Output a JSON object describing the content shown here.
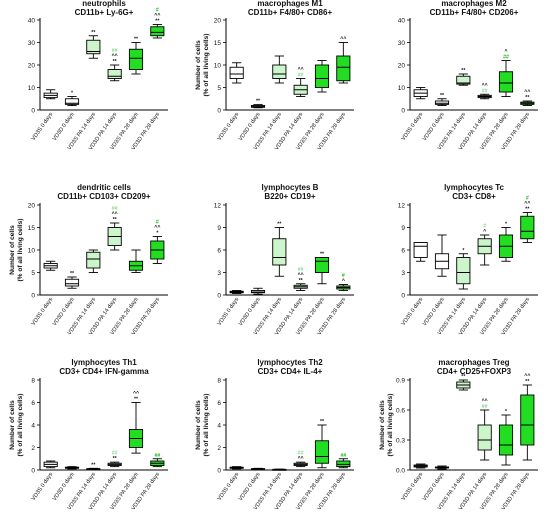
{
  "colors": {
    "sig_black": "#111111",
    "sig_lightgreen": "#8fd88f",
    "sig_green": "#22bb22",
    "box_fills": [
      "#ffffff",
      "#ffffff",
      "#ccf5cc",
      "#ccf5cc",
      "#22dd22",
      "#22dd22"
    ]
  },
  "chart_data": [
    {
      "type": "boxplot",
      "title": "neutrophils",
      "subtitle": "CD11b+ Ly-6G+",
      "ylabel": "",
      "ylim": [
        0,
        40
      ],
      "yticks": [
        0,
        10,
        20,
        30,
        40
      ],
      "categories": [
        "VD3S 0 days",
        "VD3D 0 days",
        "VD3S PA 14 days",
        "VD3D PA 14 days",
        "VD3S PA 28 days",
        "VD3D PA 28 days"
      ],
      "boxes": [
        {
          "min": 5,
          "q1": 5.5,
          "median": 6.5,
          "q3": 7.5,
          "max": 9
        },
        {
          "min": 2,
          "q1": 2.5,
          "median": 3,
          "q3": 5,
          "max": 6
        },
        {
          "min": 23,
          "q1": 25,
          "median": 26,
          "q3": 31,
          "max": 33
        },
        {
          "min": 13,
          "q1": 14,
          "median": 15,
          "q3": 18,
          "max": 20
        },
        {
          "min": 16,
          "q1": 18,
          "median": 23,
          "q3": 27,
          "max": 30
        },
        {
          "min": 32,
          "q1": 33,
          "median": 34.5,
          "q3": 37,
          "max": 38
        }
      ],
      "annotations": [
        {
          "category": 1,
          "lines": [
            {
              "text": "*",
              "color": "black"
            }
          ]
        },
        {
          "category": 2,
          "lines": [
            {
              "text": "**",
              "color": "black"
            }
          ]
        },
        {
          "category": 3,
          "lines": [
            {
              "text": "##",
              "color": "lightgreen"
            },
            {
              "text": "^^",
              "color": "black"
            },
            {
              "text": "**",
              "color": "black"
            }
          ]
        },
        {
          "category": 4,
          "lines": [
            {
              "text": "**",
              "color": "black"
            }
          ]
        },
        {
          "category": 5,
          "lines": [
            {
              "text": "#",
              "color": "green"
            },
            {
              "text": "^^",
              "color": "black"
            },
            {
              "text": "**",
              "color": "black"
            }
          ]
        }
      ]
    },
    {
      "type": "boxplot",
      "title": "macrophages M1",
      "subtitle": "CD11b+ F4/80+ CD86+",
      "ylabel": "Number of cells (% of all living cells)",
      "ylim": [
        0,
        20
      ],
      "yticks": [
        0,
        5,
        10,
        15,
        20
      ],
      "categories": [
        "VD3S 0 days",
        "VD3D 0 days",
        "VD3S PA 14 days",
        "VD3D PA 14 days",
        "VD3S PA 28 days",
        "VD3D PA 28 days"
      ],
      "boxes": [
        {
          "min": 6,
          "q1": 7,
          "median": 8,
          "q3": 9.5,
          "max": 10.5
        },
        {
          "min": 0.5,
          "q1": 0.6,
          "median": 0.8,
          "q3": 1,
          "max": 1.2
        },
        {
          "min": 6,
          "q1": 7,
          "median": 8,
          "q3": 10,
          "max": 12
        },
        {
          "min": 3,
          "q1": 3.5,
          "median": 4.5,
          "q3": 5.5,
          "max": 7
        },
        {
          "min": 4,
          "q1": 5,
          "median": 7,
          "q3": 10,
          "max": 11
        },
        {
          "min": 6,
          "q1": 6.5,
          "median": 9.5,
          "q3": 12,
          "max": 15
        }
      ],
      "annotations": [
        {
          "category": 1,
          "lines": [
            {
              "text": "**",
              "color": "black"
            }
          ]
        },
        {
          "category": 3,
          "lines": [
            {
              "text": "^^",
              "color": "black"
            },
            {
              "text": "##",
              "color": "lightgreen"
            }
          ]
        },
        {
          "category": 5,
          "lines": [
            {
              "text": "^^",
              "color": "black"
            }
          ]
        }
      ]
    },
    {
      "type": "boxplot",
      "title": "macrophages M2",
      "subtitle": "CD11b+ F4/80+ CD206+",
      "ylabel": "",
      "ylim": [
        0,
        40
      ],
      "yticks": [
        0,
        10,
        20,
        30,
        40
      ],
      "categories": [
        "VD3S 0 days",
        "VD3D 0 days",
        "VD3S PA 14 days",
        "VD3D PA 14 days",
        "VD3S PA 28 days",
        "VD3D PA 28 days"
      ],
      "boxes": [
        {
          "min": 5,
          "q1": 6,
          "median": 7.5,
          "q3": 9,
          "max": 10
        },
        {
          "min": 2,
          "q1": 2.5,
          "median": 3,
          "q3": 4,
          "max": 5
        },
        {
          "min": 11,
          "q1": 11.5,
          "median": 12,
          "q3": 15,
          "max": 16
        },
        {
          "min": 5,
          "q1": 5.5,
          "median": 6,
          "q3": 6.5,
          "max": 7
        },
        {
          "min": 6,
          "q1": 8,
          "median": 12,
          "q3": 17,
          "max": 22
        },
        {
          "min": 2,
          "q1": 2.5,
          "median": 3,
          "q3": 3.5,
          "max": 4
        }
      ],
      "annotations": [
        {
          "category": 1,
          "lines": [
            {
              "text": "**",
              "color": "black"
            }
          ]
        },
        {
          "category": 2,
          "lines": [
            {
              "text": "**",
              "color": "black"
            }
          ]
        },
        {
          "category": 3,
          "lines": [
            {
              "text": "^^",
              "color": "black"
            },
            {
              "text": "##",
              "color": "lightgreen"
            }
          ]
        },
        {
          "category": 4,
          "lines": [
            {
              "text": "^",
              "color": "black"
            },
            {
              "text": "##",
              "color": "green"
            }
          ]
        },
        {
          "category": 5,
          "lines": [
            {
              "text": "^^",
              "color": "black"
            },
            {
              "text": "**",
              "color": "black"
            }
          ]
        }
      ]
    },
    {
      "type": "boxplot",
      "title": "dendritic cells",
      "subtitle": "CD11b+ CD103+ CD209+",
      "ylabel": "Number of cells (% of all living cells)",
      "ylim": [
        0,
        20
      ],
      "yticks": [
        0,
        5,
        10,
        15,
        20
      ],
      "categories": [
        "VD3S 0 days",
        "VD3D 0 days",
        "VD3S PA 14 days",
        "VD3D PA 14 days",
        "VD3S PA 28 days",
        "VD3D PA 28 days"
      ],
      "boxes": [
        {
          "min": 5.5,
          "q1": 6,
          "median": 6.5,
          "q3": 7,
          "max": 7.5
        },
        {
          "min": 1.5,
          "q1": 2,
          "median": 2.5,
          "q3": 3.5,
          "max": 4
        },
        {
          "min": 5,
          "q1": 6,
          "median": 8,
          "q3": 9.5,
          "max": 10
        },
        {
          "min": 10,
          "q1": 11,
          "median": 13,
          "q3": 15,
          "max": 16
        },
        {
          "min": 5,
          "q1": 5.5,
          "median": 6.5,
          "q3": 7.5,
          "max": 10
        },
        {
          "min": 7,
          "q1": 8,
          "median": 10,
          "q3": 12,
          "max": 13
        }
      ],
      "annotations": [
        {
          "category": 1,
          "lines": [
            {
              "text": "**",
              "color": "black"
            }
          ]
        },
        {
          "category": 3,
          "lines": [
            {
              "text": "##",
              "color": "lightgreen"
            },
            {
              "text": "^^",
              "color": "black"
            },
            {
              "text": "**",
              "color": "black"
            }
          ]
        },
        {
          "category": 5,
          "lines": [
            {
              "text": "#",
              "color": "green"
            },
            {
              "text": "^^",
              "color": "black"
            },
            {
              "text": "*",
              "color": "black"
            }
          ]
        }
      ]
    },
    {
      "type": "boxplot",
      "title": "lymphocytes B",
      "subtitle": "B220+ CD19+",
      "ylabel": "",
      "ylim": [
        0,
        12
      ],
      "yticks": [
        0,
        3,
        6,
        9,
        12
      ],
      "categories": [
        "VD3S 0 days",
        "VD3D 0 days",
        "VD3S PA 14 days",
        "VD3D PA 14 days",
        "VD3S PA 28 days",
        "VD3D PA 28 days"
      ],
      "boxes": [
        {
          "min": 0.2,
          "q1": 0.3,
          "median": 0.4,
          "q3": 0.5,
          "max": 0.6
        },
        {
          "min": 0.1,
          "q1": 0.3,
          "median": 0.4,
          "q3": 0.6,
          "max": 0.9
        },
        {
          "min": 2.5,
          "q1": 4,
          "median": 5,
          "q3": 7.5,
          "max": 9
        },
        {
          "min": 0.6,
          "q1": 0.9,
          "median": 1.1,
          "q3": 1.3,
          "max": 1.5
        },
        {
          "min": 1.5,
          "q1": 3,
          "median": 4.5,
          "q3": 5,
          "max": 5
        },
        {
          "min": 0.6,
          "q1": 0.8,
          "median": 1,
          "q3": 1.2,
          "max": 1.4
        }
      ],
      "annotations": [
        {
          "category": 2,
          "lines": [
            {
              "text": "**",
              "color": "black"
            }
          ]
        },
        {
          "category": 3,
          "lines": [
            {
              "text": "##",
              "color": "lightgreen"
            },
            {
              "text": "^^",
              "color": "black"
            },
            {
              "text": "**",
              "color": "black"
            }
          ]
        },
        {
          "category": 4,
          "lines": [
            {
              "text": "**",
              "color": "black"
            }
          ]
        },
        {
          "category": 5,
          "lines": [
            {
              "text": "#",
              "color": "green"
            },
            {
              "text": "^",
              "color": "black"
            }
          ]
        }
      ]
    },
    {
      "type": "boxplot",
      "title": "lymphocytes Tc",
      "subtitle": "CD3+ CD8+",
      "ylabel": "",
      "ylim": [
        0,
        12
      ],
      "yticks": [
        0,
        3,
        6,
        9,
        12
      ],
      "categories": [
        "VD3S 0 days",
        "VD3D 0 days",
        "VD3S PA 14 days",
        "VD3D PA 14 days",
        "VD3S PA 28 days",
        "VD3D PA 28 days"
      ],
      "boxes": [
        {
          "min": 4.5,
          "q1": 5,
          "median": 6.5,
          "q3": 7,
          "max": 7
        },
        {
          "min": 2.5,
          "q1": 3.5,
          "median": 4.5,
          "q3": 5.5,
          "max": 8
        },
        {
          "min": 0.8,
          "q1": 1.5,
          "median": 3,
          "q3": 5,
          "max": 5.5
        },
        {
          "min": 4,
          "q1": 5.5,
          "median": 6.5,
          "q3": 7.5,
          "max": 8
        },
        {
          "min": 4.5,
          "q1": 5,
          "median": 6.5,
          "q3": 8,
          "max": 9
        },
        {
          "min": 7,
          "q1": 7.5,
          "median": 8.5,
          "q3": 10.5,
          "max": 11
        }
      ],
      "annotations": [
        {
          "category": 2,
          "lines": [
            {
              "text": "*",
              "color": "black"
            }
          ]
        },
        {
          "category": 3,
          "lines": [
            {
              "text": "#",
              "color": "lightgreen"
            },
            {
              "text": "^",
              "color": "black"
            }
          ]
        },
        {
          "category": 4,
          "lines": [
            {
              "text": "*",
              "color": "black"
            }
          ]
        },
        {
          "category": 5,
          "lines": [
            {
              "text": "#",
              "color": "green"
            },
            {
              "text": "^^",
              "color": "black"
            },
            {
              "text": "**",
              "color": "black"
            }
          ]
        }
      ]
    },
    {
      "type": "boxplot",
      "title": "lymphocytes Th1",
      "subtitle": "CD3+ CD4+ IFN-gamma",
      "ylabel": "Number of cells (% of all living cells)",
      "ylim": [
        0,
        8
      ],
      "yticks": [
        0,
        2,
        4,
        6,
        8
      ],
      "categories": [
        "VD3S 0 days",
        "VD3D 0 days",
        "VD3S PA 14 days",
        "VD3D PA 14 days",
        "VD3S PA 28 days",
        "VD3D PA 28 days"
      ],
      "boxes": [
        {
          "min": 0.2,
          "q1": 0.3,
          "median": 0.5,
          "q3": 0.7,
          "max": 0.8
        },
        {
          "min": 0.1,
          "q1": 0.15,
          "median": 0.2,
          "q3": 0.25,
          "max": 0.3
        },
        {
          "min": 0.05,
          "q1": 0.08,
          "median": 0.1,
          "q3": 0.12,
          "max": 0.15
        },
        {
          "min": 0.3,
          "q1": 0.4,
          "median": 0.5,
          "q3": 0.6,
          "max": 0.7
        },
        {
          "min": 1.5,
          "q1": 2,
          "median": 2.8,
          "q3": 3.6,
          "max": 6
        },
        {
          "min": 0.3,
          "q1": 0.4,
          "median": 0.6,
          "q3": 0.8,
          "max": 1
        }
      ],
      "annotations": [
        {
          "category": 2,
          "lines": [
            {
              "text": "**",
              "color": "black"
            }
          ]
        },
        {
          "category": 3,
          "lines": [
            {
              "text": "##",
              "color": "lightgreen"
            },
            {
              "text": "**",
              "color": "black"
            }
          ]
        },
        {
          "category": 4,
          "lines": [
            {
              "text": "^^",
              "color": "black"
            },
            {
              "text": "**",
              "color": "black"
            }
          ]
        },
        {
          "category": 5,
          "lines": [
            {
              "text": "##",
              "color": "green"
            }
          ]
        }
      ]
    },
    {
      "type": "boxplot",
      "title": "lymphocytes Th2",
      "subtitle": "CD3+ CD4+ IL-4+",
      "ylabel": "Number of cells (% of all living cells)",
      "ylim": [
        0,
        8
      ],
      "yticks": [
        0,
        2,
        4,
        6,
        8
      ],
      "categories": [
        "VD3S 0 days",
        "VD3D 0 days",
        "VD3S PA 14 days",
        "VD3D PA 14 days",
        "VD3S PA 28 days",
        "VD3D PA 28 days"
      ],
      "boxes": [
        {
          "min": 0.1,
          "q1": 0.15,
          "median": 0.2,
          "q3": 0.25,
          "max": 0.3
        },
        {
          "min": 0.05,
          "q1": 0.08,
          "median": 0.1,
          "q3": 0.12,
          "max": 0.15
        },
        {
          "min": 0.02,
          "q1": 0.04,
          "median": 0.05,
          "q3": 0.06,
          "max": 0.08
        },
        {
          "min": 0.3,
          "q1": 0.4,
          "median": 0.5,
          "q3": 0.6,
          "max": 0.7
        },
        {
          "min": 0.2,
          "q1": 0.6,
          "median": 1.2,
          "q3": 2.6,
          "max": 4
        },
        {
          "min": 0.2,
          "q1": 0.3,
          "median": 0.5,
          "q3": 0.8,
          "max": 1
        }
      ],
      "annotations": [
        {
          "category": 3,
          "lines": [
            {
              "text": "##",
              "color": "lightgreen"
            },
            {
              "text": "^^",
              "color": "black"
            }
          ]
        },
        {
          "category": 4,
          "lines": [
            {
              "text": "**",
              "color": "black"
            }
          ]
        },
        {
          "category": 5,
          "lines": [
            {
              "text": "##",
              "color": "green"
            }
          ]
        }
      ]
    },
    {
      "type": "boxplot",
      "title": "macrophages Treg",
      "subtitle": "CD4+ CD25+FOXP3",
      "ylabel": "Number of cells (% of all living cells)",
      "ylim": [
        0,
        0.9
      ],
      "yticks": [
        0.0,
        0.3,
        0.6,
        0.9
      ],
      "categories": [
        "VD3S 0 days",
        "VD3D 0 days",
        "VD3S PA 14 days",
        "VD3D PA 14 days",
        "VD3S PA 28 days",
        "VD3D PA 28 days"
      ],
      "boxes": [
        {
          "min": 0.02,
          "q1": 0.03,
          "median": 0.04,
          "q3": 0.05,
          "max": 0.06
        },
        {
          "min": 0.01,
          "q1": 0.02,
          "median": 0.025,
          "q3": 0.03,
          "max": 0.04
        },
        {
          "min": 0.8,
          "q1": 0.82,
          "median": 0.85,
          "q3": 0.88,
          "max": 0.9
        },
        {
          "min": 0.1,
          "q1": 0.2,
          "median": 0.3,
          "q3": 0.45,
          "max": 0.6
        },
        {
          "min": 0.05,
          "q1": 0.15,
          "median": 0.25,
          "q3": 0.45,
          "max": 0.55
        },
        {
          "min": 0.1,
          "q1": 0.25,
          "median": 0.45,
          "q3": 0.75,
          "max": 0.85
        }
      ],
      "annotations": [
        {
          "category": 2,
          "lines": [
            {
              "text": "**",
              "color": "black"
            }
          ]
        },
        {
          "category": 3,
          "lines": [
            {
              "text": "^^",
              "color": "black"
            },
            {
              "text": "##",
              "color": "lightgreen"
            }
          ]
        },
        {
          "category": 4,
          "lines": [
            {
              "text": "*",
              "color": "black"
            }
          ]
        },
        {
          "category": 5,
          "lines": [
            {
              "text": "^^",
              "color": "black"
            },
            {
              "text": "**",
              "color": "black"
            }
          ]
        }
      ]
    }
  ]
}
